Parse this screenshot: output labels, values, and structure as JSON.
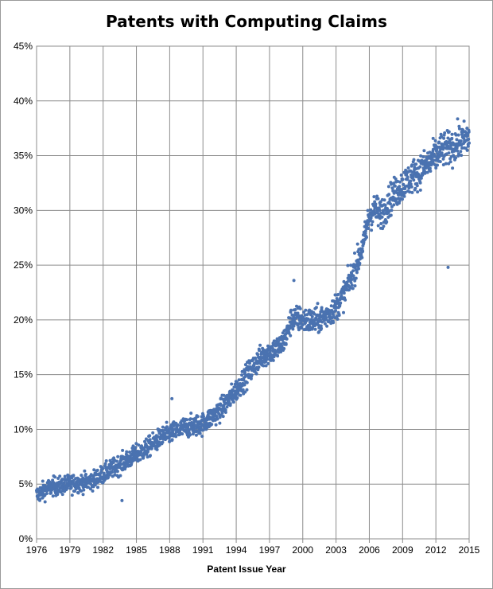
{
  "chart_data": {
    "type": "scatter",
    "title": "Patents with Computing Claims",
    "xlabel": "Patent Issue Year",
    "ylabel": "",
    "xlim": [
      1976,
      2015
    ],
    "ylim": [
      0,
      45
    ],
    "x_ticks": [
      1976,
      1979,
      1982,
      1985,
      1988,
      1991,
      1994,
      1997,
      2000,
      2003,
      2006,
      2009,
      2012,
      2015
    ],
    "x_tick_labels": [
      "1976",
      "1979",
      "1982",
      "1985",
      "1988",
      "1991",
      "1994",
      "1997",
      "2000",
      "2003",
      "2006",
      "2009",
      "2012",
      "2015"
    ],
    "y_ticks": [
      0,
      5,
      10,
      15,
      20,
      25,
      30,
      35,
      40,
      45
    ],
    "y_tick_labels": [
      "0%",
      "5%",
      "10%",
      "15%",
      "20%",
      "25%",
      "30%",
      "35%",
      "40%",
      "45%"
    ],
    "grid": true,
    "legend": "none",
    "marker_color": "#4A72B0",
    "series": [
      {
        "x": [
          1976.0,
          1976.5,
          1977.0,
          1977.5,
          1978.0,
          1978.5,
          1979.0,
          1979.5,
          1980.0,
          1980.5,
          1981.0,
          1981.5,
          1982.0,
          1982.5,
          1983.0,
          1983.5,
          1984.0,
          1984.5,
          1985.0,
          1985.5,
          1986.0,
          1986.5,
          1987.0,
          1987.5,
          1988.0,
          1988.5,
          1989.0,
          1989.5,
          1990.0,
          1990.5,
          1991.0,
          1991.5,
          1992.0,
          1992.5,
          1993.0,
          1993.5,
          1994.0,
          1994.5,
          1995.0,
          1995.5,
          1996.0,
          1996.5,
          1997.0,
          1997.5,
          1998.0,
          1998.5,
          1999.0,
          1999.5,
          2000.0,
          2000.5,
          2001.0,
          2001.5,
          2002.0,
          2002.5,
          2003.0,
          2003.5,
          2004.0,
          2004.5,
          2005.0,
          2005.5,
          2006.0,
          2006.5,
          2007.0,
          2007.5,
          2008.0,
          2008.5,
          2009.0,
          2009.5,
          2010.0,
          2010.5,
          2011.0,
          2011.5,
          2012.0,
          2012.5,
          2013.0,
          2013.5,
          2014.0,
          2014.5,
          2015.0
        ],
        "y": [
          4.0,
          4.3,
          4.6,
          4.8,
          4.8,
          4.9,
          5.0,
          5.1,
          5.1,
          5.2,
          5.3,
          5.6,
          5.9,
          6.2,
          6.5,
          6.8,
          7.1,
          7.4,
          7.7,
          8.0,
          8.3,
          8.7,
          9.1,
          9.4,
          9.6,
          9.8,
          10.0,
          10.2,
          10.3,
          10.4,
          10.5,
          10.9,
          11.3,
          11.7,
          12.3,
          12.9,
          13.6,
          14.3,
          15.0,
          15.7,
          16.3,
          16.8,
          17.1,
          17.3,
          17.6,
          18.5,
          20.1,
          20.1,
          20.0,
          19.9,
          19.9,
          20.0,
          20.3,
          20.7,
          21.2,
          21.9,
          23.0,
          24.2,
          25.5,
          27.0,
          29.5,
          30.1,
          29.6,
          30.3,
          31.2,
          31.8,
          32.3,
          32.8,
          33.2,
          33.6,
          34.0,
          34.4,
          35.0,
          35.5,
          35.6,
          35.8,
          36.2,
          36.4,
          36.6
        ]
      }
    ],
    "noise": 1.1,
    "outliers": [
      [
        2013.1,
        24.8
      ],
      [
        1983.7,
        3.5
      ],
      [
        1988.2,
        12.8
      ],
      [
        1999.2,
        23.6
      ]
    ]
  }
}
